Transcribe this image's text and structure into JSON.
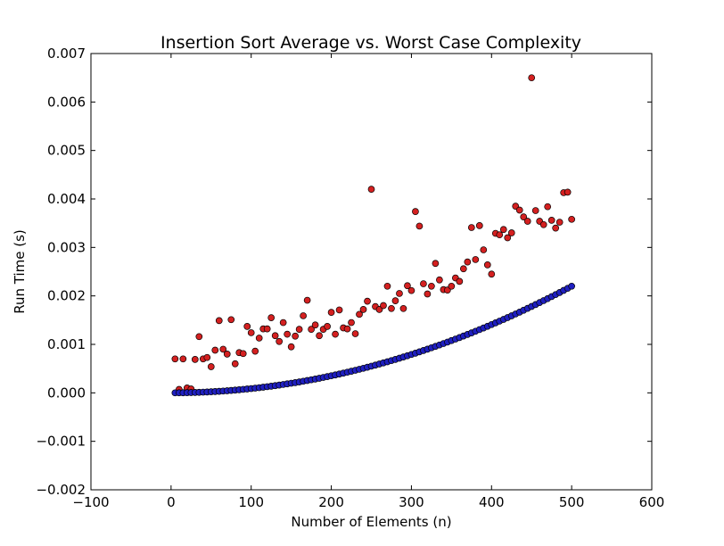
{
  "chart_data": {
    "type": "scatter",
    "title": "Insertion Sort Average vs. Worst Case Complexity",
    "xlabel": "Number of Elements (n)",
    "ylabel": "Run Time (s)",
    "xlim": [
      -100,
      600
    ],
    "ylim": [
      -0.002,
      0.007
    ],
    "grid": false,
    "x_ticks": [
      -100,
      0,
      100,
      200,
      300,
      400,
      500,
      600
    ],
    "x_tick_labels": [
      "−100",
      "0",
      "100",
      "200",
      "300",
      "400",
      "500",
      "600"
    ],
    "y_ticks": [
      -0.002,
      -0.001,
      0.0,
      0.001,
      0.002,
      0.003,
      0.004,
      0.005,
      0.006,
      0.007
    ],
    "y_tick_labels": [
      "−0.002",
      "−0.001",
      "0.000",
      "0.001",
      "0.002",
      "0.003",
      "0.004",
      "0.005",
      "0.006",
      "0.007"
    ],
    "series": [
      {
        "color": "#d42020",
        "points": [
          [
            5,
            0.0007
          ],
          [
            10,
            7e-05
          ],
          [
            15,
            0.0007
          ],
          [
            20,
            0.0001
          ],
          [
            25,
            8e-05
          ],
          [
            30,
            0.00069
          ],
          [
            35,
            0.00116
          ],
          [
            40,
            0.0007
          ],
          [
            45,
            0.00073
          ],
          [
            50,
            0.00054
          ],
          [
            55,
            0.00088
          ],
          [
            60,
            0.00149
          ],
          [
            65,
            0.0009
          ],
          [
            70,
            0.0008
          ],
          [
            75,
            0.00151
          ],
          [
            80,
            0.0006
          ],
          [
            85,
            0.00083
          ],
          [
            90,
            0.00081
          ],
          [
            95,
            0.00137
          ],
          [
            100,
            0.00124
          ],
          [
            105,
            0.00086
          ],
          [
            110,
            0.00113
          ],
          [
            115,
            0.00132
          ],
          [
            120,
            0.00132
          ],
          [
            125,
            0.00155
          ],
          [
            130,
            0.00118
          ],
          [
            135,
            0.00106
          ],
          [
            140,
            0.00145
          ],
          [
            145,
            0.00121
          ],
          [
            150,
            0.00095
          ],
          [
            155,
            0.00117
          ],
          [
            160,
            0.00131
          ],
          [
            165,
            0.00159
          ],
          [
            170,
            0.00191
          ],
          [
            175,
            0.00131
          ],
          [
            180,
            0.0014
          ],
          [
            185,
            0.00118
          ],
          [
            190,
            0.00131
          ],
          [
            195,
            0.00137
          ],
          [
            200,
            0.00166
          ],
          [
            205,
            0.00121
          ],
          [
            210,
            0.00171
          ],
          [
            215,
            0.00134
          ],
          [
            220,
            0.00132
          ],
          [
            225,
            0.00145
          ],
          [
            230,
            0.00122
          ],
          [
            235,
            0.00162
          ],
          [
            240,
            0.00172
          ],
          [
            245,
            0.00189
          ],
          [
            250,
            0.0042
          ],
          [
            255,
            0.00178
          ],
          [
            260,
            0.00172
          ],
          [
            265,
            0.0018
          ],
          [
            270,
            0.0022
          ],
          [
            275,
            0.00174
          ],
          [
            280,
            0.0019
          ],
          [
            285,
            0.00205
          ],
          [
            290,
            0.00174
          ],
          [
            295,
            0.00221
          ],
          [
            300,
            0.00211
          ],
          [
            305,
            0.00374
          ],
          [
            310,
            0.00344
          ],
          [
            315,
            0.00225
          ],
          [
            320,
            0.00204
          ],
          [
            325,
            0.0022
          ],
          [
            330,
            0.00267
          ],
          [
            335,
            0.00233
          ],
          [
            340,
            0.00213
          ],
          [
            345,
            0.00212
          ],
          [
            350,
            0.0022
          ],
          [
            355,
            0.00237
          ],
          [
            360,
            0.0023
          ],
          [
            365,
            0.00256
          ],
          [
            370,
            0.0027
          ],
          [
            375,
            0.00341
          ],
          [
            380,
            0.00275
          ],
          [
            385,
            0.00345
          ],
          [
            390,
            0.00295
          ],
          [
            395,
            0.00264
          ],
          [
            400,
            0.00245
          ],
          [
            405,
            0.00329
          ],
          [
            410,
            0.00326
          ],
          [
            415,
            0.00337
          ],
          [
            420,
            0.0032
          ],
          [
            425,
            0.0033
          ],
          [
            430,
            0.00385
          ],
          [
            435,
            0.00377
          ],
          [
            440,
            0.00363
          ],
          [
            445,
            0.00354
          ],
          [
            450,
            0.0065
          ],
          [
            455,
            0.00376
          ],
          [
            460,
            0.00354
          ],
          [
            465,
            0.00347
          ],
          [
            470,
            0.00384
          ],
          [
            475,
            0.00356
          ],
          [
            480,
            0.0034
          ],
          [
            485,
            0.00352
          ],
          [
            490,
            0.00413
          ],
          [
            495,
            0.00414
          ],
          [
            500,
            0.00358
          ]
        ]
      },
      {
        "color": "#1f1fc0",
        "quadratic_coefficient": 8.8e-09,
        "x_start": 5,
        "x_end": 500,
        "x_step": 5
      }
    ]
  }
}
